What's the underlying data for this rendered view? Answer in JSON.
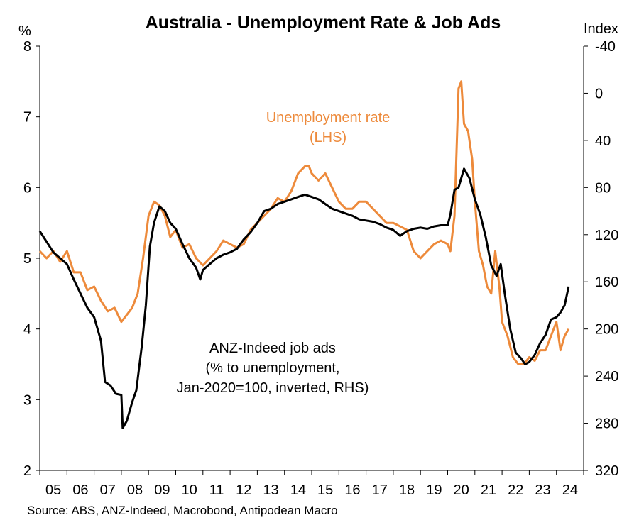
{
  "chart_data": {
    "type": "line",
    "title": "Australia - Unemployment Rate & Job Ads",
    "source": "Source: ABS, ANZ-Indeed, Macrobond, Antipodean Macro",
    "left_axis": {
      "unit": "%",
      "range": [
        2,
        8
      ],
      "ticks": [
        "2",
        "3",
        "4",
        "5",
        "6",
        "7",
        "8"
      ]
    },
    "right_axis": {
      "unit": "Index",
      "range": [
        320,
        -40
      ],
      "inverted": true,
      "ticks": [
        "-40",
        "0",
        "40",
        "80",
        "120",
        "160",
        "200",
        "240",
        "280",
        "320"
      ]
    },
    "x_axis": {
      "range": [
        2005,
        2025
      ],
      "ticks": [
        "05",
        "06",
        "07",
        "08",
        "09",
        "10",
        "11",
        "12",
        "13",
        "14",
        "15",
        "16",
        "17",
        "18",
        "19",
        "20",
        "21",
        "22",
        "23",
        "24"
      ]
    },
    "grid": false,
    "colors": {
      "unemployment": "#ed8a3b",
      "job_ads": "#000000"
    },
    "annotations": {
      "unemployment": [
        "Unemployment rate",
        "(LHS)"
      ],
      "job_ads": [
        "ANZ-Indeed job ads",
        "(% to unemployment,",
        "Jan-2020=100, inverted, RHS)"
      ]
    },
    "series": [
      {
        "name": "Unemployment rate (LHS)",
        "axis": "left",
        "x": [
          2005.0,
          2005.25,
          2005.5,
          2005.75,
          2006.0,
          2006.25,
          2006.5,
          2006.75,
          2007.0,
          2007.25,
          2007.5,
          2007.75,
          2008.0,
          2008.2,
          2008.4,
          2008.6,
          2008.8,
          2009.0,
          2009.2,
          2009.4,
          2009.6,
          2009.8,
          2010.0,
          2010.25,
          2010.5,
          2010.75,
          2011.0,
          2011.25,
          2011.5,
          2011.75,
          2012.0,
          2012.25,
          2012.5,
          2012.75,
          2013.0,
          2013.25,
          2013.5,
          2013.75,
          2014.0,
          2014.25,
          2014.5,
          2014.75,
          2014.9,
          2015.0,
          2015.25,
          2015.5,
          2015.75,
          2016.0,
          2016.25,
          2016.5,
          2016.75,
          2017.0,
          2017.25,
          2017.5,
          2017.75,
          2018.0,
          2018.25,
          2018.5,
          2018.75,
          2019.0,
          2019.25,
          2019.5,
          2019.75,
          2020.0,
          2020.1,
          2020.25,
          2020.4,
          2020.5,
          2020.6,
          2020.75,
          2020.9,
          2021.0,
          2021.15,
          2021.3,
          2021.45,
          2021.6,
          2021.75,
          2021.9,
          2022.0,
          2022.2,
          2022.4,
          2022.6,
          2022.8,
          2023.0,
          2023.2,
          2023.4,
          2023.6,
          2023.8,
          2024.0,
          2024.15,
          2024.3,
          2024.45
        ],
        "y": [
          5.1,
          5.0,
          5.1,
          4.95,
          5.1,
          4.8,
          4.8,
          4.55,
          4.6,
          4.4,
          4.25,
          4.3,
          4.1,
          4.2,
          4.3,
          4.5,
          5.0,
          5.6,
          5.8,
          5.75,
          5.6,
          5.3,
          5.4,
          5.15,
          5.2,
          5.0,
          4.9,
          5.0,
          5.1,
          5.25,
          5.2,
          5.15,
          5.2,
          5.4,
          5.5,
          5.6,
          5.7,
          5.85,
          5.8,
          5.95,
          6.2,
          6.3,
          6.3,
          6.2,
          6.1,
          6.2,
          6.0,
          5.8,
          5.7,
          5.7,
          5.8,
          5.8,
          5.7,
          5.6,
          5.5,
          5.5,
          5.45,
          5.4,
          5.1,
          5.0,
          5.1,
          5.2,
          5.25,
          5.2,
          5.1,
          5.6,
          7.4,
          7.5,
          6.9,
          6.8,
          6.4,
          5.8,
          5.1,
          4.9,
          4.6,
          4.5,
          5.1,
          4.6,
          4.1,
          3.9,
          3.6,
          3.5,
          3.5,
          3.6,
          3.55,
          3.7,
          3.7,
          3.9,
          4.1,
          3.7,
          3.9,
          4.0
        ]
      },
      {
        "name": "ANZ-Indeed job ads (% to unemployment, Jan-2020=100, inverted, RHS)",
        "axis": "right",
        "x": [
          2005.0,
          2005.25,
          2005.5,
          2005.75,
          2006.0,
          2006.25,
          2006.5,
          2006.75,
          2007.0,
          2007.25,
          2007.4,
          2007.6,
          2007.8,
          2008.0,
          2008.05,
          2008.2,
          2008.4,
          2008.55,
          2008.75,
          2008.9,
          2009.05,
          2009.2,
          2009.4,
          2009.6,
          2009.8,
          2010.0,
          2010.25,
          2010.5,
          2010.75,
          2010.9,
          2011.0,
          2011.25,
          2011.5,
          2011.75,
          2012.0,
          2012.25,
          2012.5,
          2012.75,
          2013.0,
          2013.25,
          2013.5,
          2013.75,
          2014.0,
          2014.25,
          2014.5,
          2014.75,
          2015.0,
          2015.25,
          2015.5,
          2015.75,
          2016.0,
          2016.25,
          2016.5,
          2016.75,
          2017.0,
          2017.25,
          2017.5,
          2017.75,
          2018.0,
          2018.25,
          2018.5,
          2018.75,
          2019.0,
          2019.25,
          2019.5,
          2019.75,
          2020.0,
          2020.1,
          2020.25,
          2020.4,
          2020.6,
          2020.8,
          2021.0,
          2021.2,
          2021.4,
          2021.6,
          2021.8,
          2021.95,
          2022.1,
          2022.3,
          2022.5,
          2022.7,
          2022.85,
          2023.0,
          2023.2,
          2023.4,
          2023.6,
          2023.8,
          2024.0,
          2024.15,
          2024.3,
          2024.45
        ],
        "y": [
          117,
          126,
          135,
          140,
          145,
          158,
          170,
          182,
          190,
          210,
          245,
          248,
          255,
          256,
          284,
          278,
          262,
          252,
          215,
          180,
          130,
          110,
          96,
          100,
          110,
          115,
          128,
          140,
          148,
          158,
          150,
          145,
          140,
          137,
          135,
          132,
          124,
          118,
          110,
          100,
          98,
          94,
          92,
          90,
          88,
          86,
          88,
          90,
          94,
          98,
          100,
          102,
          104,
          107,
          108,
          109,
          111,
          114,
          116,
          121,
          117,
          115,
          114,
          115,
          113,
          112,
          112,
          103,
          82,
          80,
          64,
          72,
          90,
          103,
          122,
          146,
          155,
          145,
          170,
          200,
          220,
          225,
          230,
          228,
          222,
          212,
          205,
          192,
          190,
          186,
          180,
          164
        ]
      }
    ]
  }
}
